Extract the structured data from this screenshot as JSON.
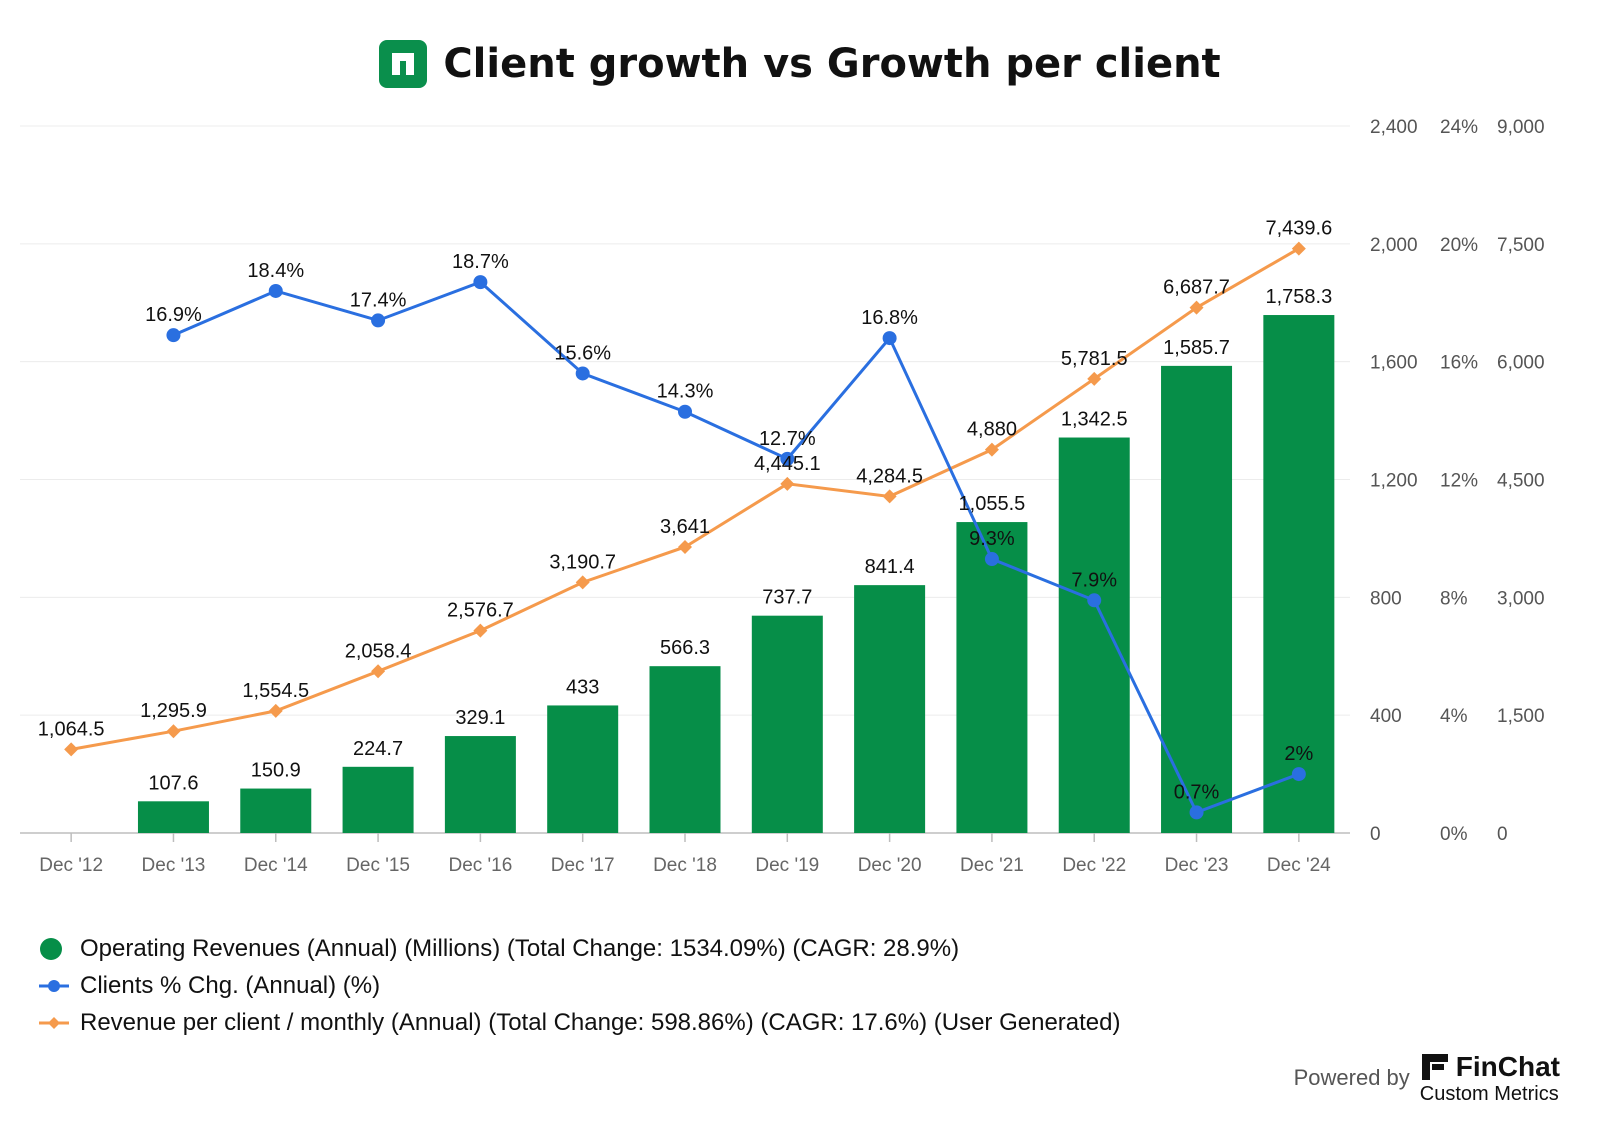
{
  "title": "Client growth vs Growth per client",
  "colors": {
    "revenue": "#068e48",
    "clients": "#2a6fe0",
    "rpc": "#f59a4c",
    "brand": "#0a8f4c"
  },
  "legend": [
    {
      "key": "revenue",
      "marker": "circle",
      "label": "Operating Revenues (Annual) (Millions) (Total Change: 1534.09%) (CAGR: 28.9%)"
    },
    {
      "key": "clients",
      "marker": "line-circle",
      "label": "Clients % Chg. (Annual) (%)"
    },
    {
      "key": "rpc",
      "marker": "line-diamond",
      "label": "Revenue per client / monthly (Annual) (Total Change: 598.86%) (CAGR: 17.6%) (User Generated)"
    }
  ],
  "branding": {
    "powered_by": "Powered by",
    "name": "FinChat",
    "sub": "Custom Metrics",
    "logo_icon": "finchat-logo-icon"
  },
  "chart_data": {
    "type": "bar",
    "categories": [
      "Dec '12",
      "Dec '13",
      "Dec '14",
      "Dec '15",
      "Dec '16",
      "Dec '17",
      "Dec '18",
      "Dec '19",
      "Dec '20",
      "Dec '21",
      "Dec '22",
      "Dec '23",
      "Dec '24"
    ],
    "axes": {
      "left_primary": {
        "min": 0,
        "max": 2400,
        "ticks": [
          "0",
          "400",
          "800",
          "1,200",
          "1,600",
          "2,000",
          "2,400"
        ]
      },
      "percent": {
        "min": 0,
        "max": 24,
        "ticks": [
          "0%",
          "4%",
          "8%",
          "12%",
          "16%",
          "20%",
          "24%"
        ]
      },
      "right": {
        "min": 0,
        "max": 9000,
        "ticks": [
          "0",
          "1,500",
          "3,000",
          "4,500",
          "6,000",
          "7,500",
          "9,000"
        ]
      }
    },
    "grid": true,
    "legend_position": "bottom-left",
    "series": [
      {
        "name": "Operating Revenues (Annual) (Millions)",
        "type": "bar",
        "axis": "left_primary",
        "values": [
          null,
          107.6,
          150.9,
          224.7,
          329.1,
          433,
          566.3,
          737.7,
          841.4,
          1055.5,
          1342.5,
          1585.7,
          1758.3
        ],
        "labels": [
          null,
          "107.6",
          "150.9",
          "224.7",
          "329.1",
          "433",
          "566.3",
          "737.7",
          "841.4",
          "1,055.5",
          "1,342.5",
          "1,585.7",
          "1,758.3"
        ]
      },
      {
        "name": "Clients % Chg. (Annual) (%)",
        "type": "line",
        "axis": "percent",
        "values": [
          null,
          16.9,
          18.4,
          17.4,
          18.7,
          15.6,
          14.3,
          12.7,
          16.8,
          9.3,
          7.9,
          0.7,
          2
        ],
        "labels": [
          null,
          "16.9%",
          "18.4%",
          "17.4%",
          "18.7%",
          "15.6%",
          "14.3%",
          "12.7%",
          "16.8%",
          "9.3%",
          "7.9%",
          "0.7%",
          "2%"
        ]
      },
      {
        "name": "Revenue per client / monthly (Annual)",
        "type": "line",
        "axis": "right",
        "values": [
          1064.5,
          1295.9,
          1554.5,
          2058.4,
          2576.7,
          3190.7,
          3641,
          4445.1,
          4284.5,
          4880,
          5781.5,
          6687.7,
          7439.6
        ],
        "labels": [
          "1,064.5",
          "1,295.9",
          "1,554.5",
          "2,058.4",
          "2,576.7",
          "3,190.7",
          "3,641",
          "4,445.1",
          "4,284.5",
          "4,880",
          "5,781.5",
          "6,687.7",
          "7,439.6"
        ]
      }
    ]
  }
}
